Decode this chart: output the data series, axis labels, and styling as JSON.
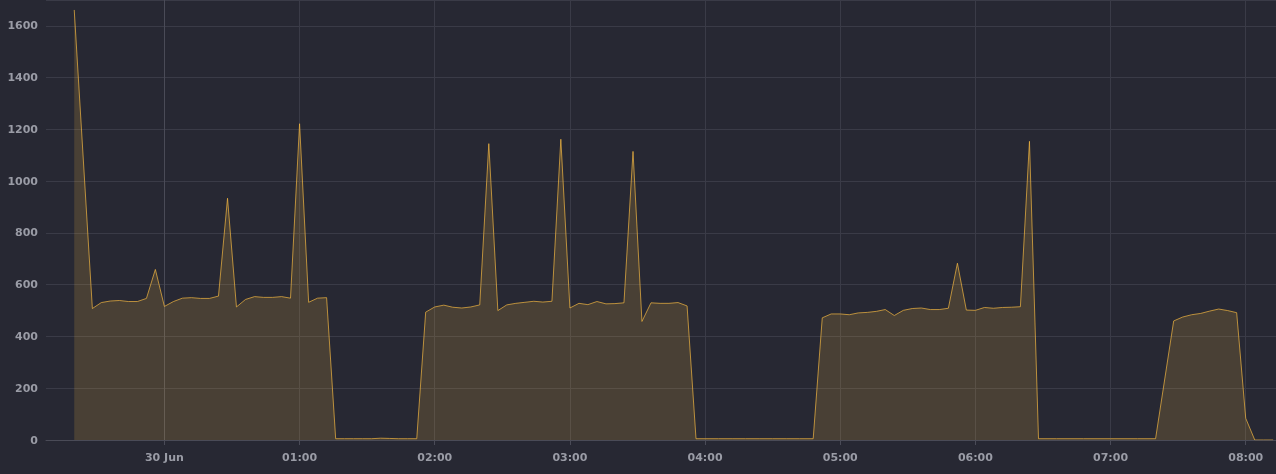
{
  "chart_data": {
    "type": "area",
    "x": [
      -0.667,
      -0.533,
      -0.467,
      -0.4,
      -0.333,
      -0.267,
      -0.2,
      -0.133,
      -0.067,
      0,
      0.067,
      0.133,
      0.2,
      0.267,
      0.333,
      0.4,
      0.467,
      0.533,
      0.6,
      0.667,
      0.733,
      0.8,
      0.867,
      0.933,
      1.0,
      1.067,
      1.133,
      1.2,
      1.267,
      1.333,
      1.4,
      1.467,
      1.533,
      1.6,
      1.667,
      1.733,
      1.8,
      1.867,
      1.933,
      2.0,
      2.067,
      2.133,
      2.2,
      2.267,
      2.333,
      2.4,
      2.467,
      2.533,
      2.6,
      2.667,
      2.733,
      2.8,
      2.867,
      2.933,
      3.0,
      3.067,
      3.133,
      3.2,
      3.267,
      3.333,
      3.4,
      3.467,
      3.533,
      3.6,
      3.667,
      3.733,
      3.8,
      3.867,
      3.933,
      4.0,
      4.1,
      4.2,
      4.3,
      4.4,
      4.5,
      4.6,
      4.7,
      4.8,
      4.867,
      4.933,
      5.0,
      5.067,
      5.133,
      5.2,
      5.267,
      5.333,
      5.4,
      5.467,
      5.533,
      5.6,
      5.667,
      5.733,
      5.8,
      5.867,
      5.933,
      6.0,
      6.067,
      6.133,
      6.2,
      6.267,
      6.333,
      6.4,
      6.467,
      6.6,
      6.8,
      7.0,
      7.2,
      7.333,
      7.467,
      7.533,
      7.6,
      7.667,
      7.733,
      7.8,
      7.867,
      7.933,
      8.0,
      8.067,
      8.133,
      8.2
    ],
    "series": [
      {
        "color": "#f5b942",
        "values": [
          1660,
          508,
          531,
          537,
          539,
          535,
          535,
          547,
          659,
          516,
          535,
          548,
          550,
          547,
          547,
          556,
          934,
          514,
          543,
          554,
          551,
          551,
          554,
          548,
          1222,
          532,
          548,
          550,
          5,
          5,
          5,
          5,
          5,
          7,
          6,
          5,
          5,
          5,
          494,
          514,
          521,
          513,
          510,
          514,
          522,
          1145,
          500,
          522,
          528,
          532,
          536,
          533,
          536,
          1162,
          510,
          528,
          523,
          535,
          526,
          527,
          530,
          1115,
          458,
          530,
          528,
          528,
          531,
          518,
          5,
          5,
          5,
          5,
          5,
          5,
          5,
          5,
          5,
          5,
          472,
          487,
          487,
          484,
          491,
          493,
          497,
          504,
          481,
          501,
          508,
          510,
          504,
          504,
          509,
          683,
          502,
          501,
          512,
          509,
          512,
          513,
          515,
          1154,
          5,
          5,
          5,
          5,
          5,
          5,
          460,
          475,
          484,
          489,
          498,
          506,
          500,
          492,
          84,
          0,
          0,
          0
        ]
      }
    ],
    "xlim": [
      -0.876,
      8.224
    ],
    "xticks": [
      {
        "value": 0,
        "label": "30 Jun"
      },
      {
        "value": 1,
        "label": "01:00"
      },
      {
        "value": 2,
        "label": "02:00"
      },
      {
        "value": 3,
        "label": "03:00"
      },
      {
        "value": 4,
        "label": "04:00"
      },
      {
        "value": 5,
        "label": "05:00"
      },
      {
        "value": 6,
        "label": "06:00"
      },
      {
        "value": 7,
        "label": "07:00"
      },
      {
        "value": 8,
        "label": "08:00"
      }
    ],
    "ylim": [
      0,
      1700
    ],
    "yticks": [
      0,
      200,
      400,
      600,
      800,
      1000,
      1200,
      1400,
      1600
    ],
    "grid": true,
    "marker": "none",
    "line_style": "solid"
  }
}
